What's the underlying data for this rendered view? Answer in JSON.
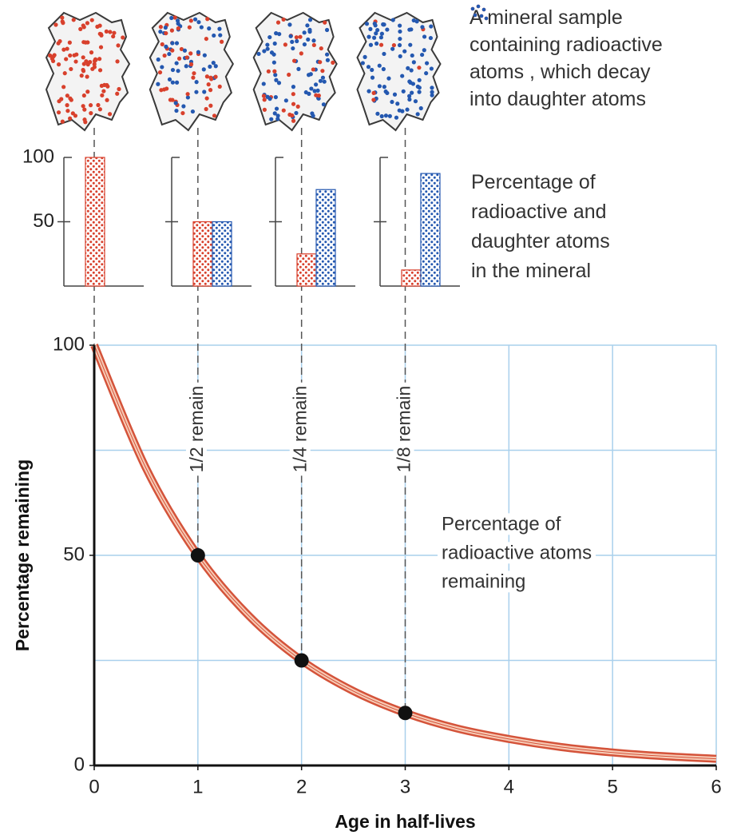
{
  "mineral_caption": {
    "lines": [
      [
        "A mineral sample"
      ],
      [
        "containing radioactive"
      ],
      [
        "atoms",
        ", which decay"
      ],
      [
        "into daughter atoms"
      ]
    ]
  },
  "bar_caption": [
    "Percentage of",
    "radioactive and",
    "daughter atoms",
    "in the mineral"
  ],
  "chart_data": [
    {
      "type": "bar",
      "categories": [
        null,
        null,
        null,
        null
      ],
      "ylim": [
        0,
        100
      ],
      "yticks": [
        50,
        100
      ],
      "series": [
        {
          "color": "#d8402c",
          "values": [
            100,
            50,
            25,
            12.5
          ]
        },
        {
          "color": "#2458b0",
          "values": [
            0,
            50,
            75,
            87.5
          ]
        }
      ]
    },
    {
      "type": "line",
      "xlabel": "Age in half-lives",
      "ylabel": "Percentage remaining",
      "xlim": [
        0,
        6
      ],
      "ylim": [
        0,
        100
      ],
      "xticks": [
        0,
        1,
        2,
        3,
        4,
        5,
        6
      ],
      "yticks": [
        0,
        50,
        100
      ],
      "xgrid": [
        1,
        2,
        3,
        4,
        5,
        6
      ],
      "ygrid": [
        25,
        50,
        75,
        100
      ],
      "grid_color": "#a9d0ec",
      "curve_label": [
        "Percentage of",
        "radioactive atoms",
        "remaining"
      ],
      "series": [
        {
          "color": "#d4533a",
          "x": [
            0,
            0.5,
            1,
            1.5,
            2,
            2.5,
            3,
            3.5,
            4,
            4.5,
            5,
            5.5,
            6
          ],
          "values": [
            100,
            70.7,
            50,
            35.4,
            25,
            17.7,
            12.5,
            8.8,
            6.3,
            4.4,
            3.1,
            2.2,
            1.6
          ]
        },
        {
          "type": "scatter",
          "color": "#111111",
          "x": [
            1,
            2,
            3
          ],
          "values": [
            50,
            25,
            12.5
          ],
          "point_labels": [
            "1/2 remain",
            "1/4 remain",
            "1/8 remain"
          ]
        }
      ]
    }
  ]
}
